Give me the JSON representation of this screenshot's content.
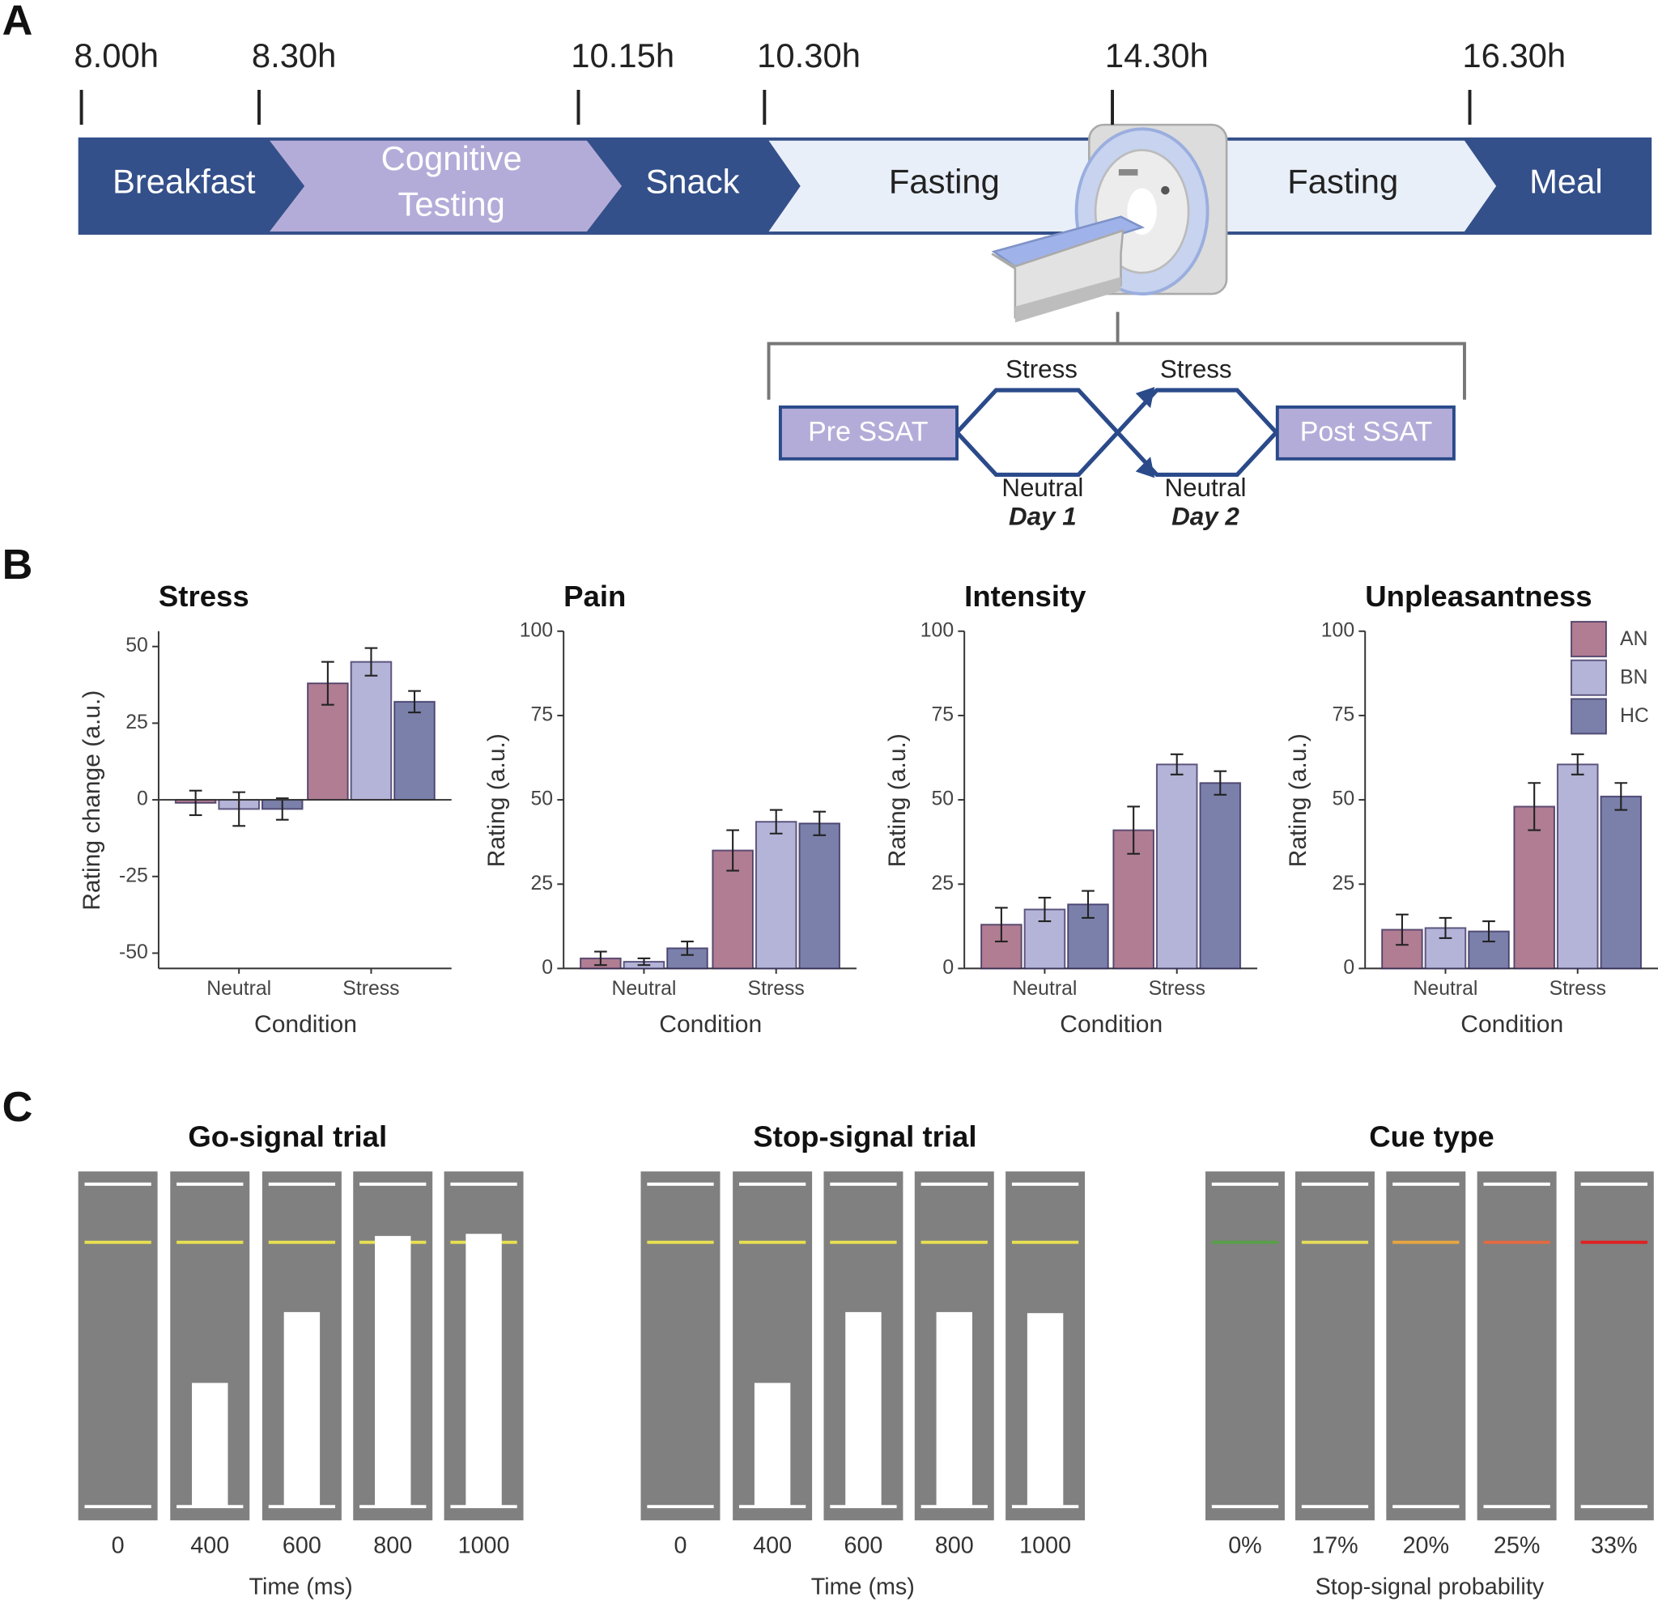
{
  "panel_labels": [
    "A",
    "B",
    "C"
  ],
  "timeline": {
    "times": [
      "8.00h",
      "8.30h",
      "10.15h",
      "10.30h",
      "14.30h",
      "16.30h"
    ],
    "segments": [
      "Breakfast",
      "Cognitive\nTesting",
      "Snack",
      "Fasting",
      "Fasting",
      "Meal"
    ]
  },
  "ssat": {
    "pre": "Pre SSAT",
    "post": "Post SSAT",
    "stress": "Stress",
    "neutral": "Neutral",
    "day1": "Day 1",
    "day2": "Day 2"
  },
  "chart_data": [
    {
      "type": "bar",
      "title": "Stress",
      "y_label": "Rating change (a.u.)",
      "x_label": "Condition",
      "categories": [
        "Neutral",
        "Stress"
      ],
      "ylim": [
        -55,
        55
      ],
      "yticks": [
        -50,
        -25,
        0,
        25,
        50
      ],
      "series": [
        {
          "name": "AN",
          "color": "#b07d92",
          "values": [
            -1,
            38
          ],
          "errors": [
            4,
            7
          ]
        },
        {
          "name": "BN",
          "color": "#b4b4d8",
          "values": [
            -3,
            45
          ],
          "errors": [
            5.5,
            4.5
          ]
        },
        {
          "name": "HC",
          "color": "#7a80aa",
          "values": [
            -3,
            32
          ],
          "errors": [
            3.5,
            3.5
          ]
        }
      ]
    },
    {
      "type": "bar",
      "title": "Pain",
      "y_label": "Rating (a.u.)",
      "x_label": "Condition",
      "categories": [
        "Neutral",
        "Stress"
      ],
      "ylim": [
        0,
        100
      ],
      "yticks": [
        0,
        25,
        50,
        75,
        100
      ],
      "series": [
        {
          "name": "AN",
          "color": "#b07d92",
          "values": [
            3,
            35
          ],
          "errors": [
            2,
            6
          ]
        },
        {
          "name": "BN",
          "color": "#b4b4d8",
          "values": [
            2,
            43.5
          ],
          "errors": [
            1,
            3.5
          ]
        },
        {
          "name": "HC",
          "color": "#7a80aa",
          "values": [
            6,
            43
          ],
          "errors": [
            2,
            3.5
          ]
        }
      ]
    },
    {
      "type": "bar",
      "title": "Intensity",
      "y_label": "Rating (a.u.)",
      "x_label": "Condition",
      "categories": [
        "Neutral",
        "Stress"
      ],
      "ylim": [
        0,
        100
      ],
      "yticks": [
        0,
        25,
        50,
        75,
        100
      ],
      "series": [
        {
          "name": "AN",
          "color": "#b07d92",
          "values": [
            13,
            41
          ],
          "errors": [
            5,
            7
          ]
        },
        {
          "name": "BN",
          "color": "#b4b4d8",
          "values": [
            17.5,
            60.5
          ],
          "errors": [
            3.5,
            3
          ]
        },
        {
          "name": "HC",
          "color": "#7a80aa",
          "values": [
            19,
            55
          ],
          "errors": [
            4,
            3.5
          ]
        }
      ]
    },
    {
      "type": "bar",
      "title": "Unpleasantness",
      "y_label": "Rating (a.u.)",
      "x_label": "Condition",
      "categories": [
        "Neutral",
        "Stress"
      ],
      "ylim": [
        0,
        100
      ],
      "yticks": [
        0,
        25,
        50,
        75,
        100
      ],
      "legend": "top-right",
      "series": [
        {
          "name": "AN",
          "color": "#b07d92",
          "values": [
            11.5,
            48
          ],
          "errors": [
            4.5,
            7
          ]
        },
        {
          "name": "BN",
          "color": "#b4b4d8",
          "values": [
            12,
            60.5
          ],
          "errors": [
            3,
            3
          ]
        },
        {
          "name": "HC",
          "color": "#7a80aa",
          "values": [
            11,
            51
          ],
          "errors": [
            3,
            4
          ]
        }
      ]
    }
  ],
  "stimuli": [
    {
      "title": "Go-signal trial",
      "ticks": [
        0,
        400,
        600,
        800,
        1000
      ],
      "x_label": "Time (ms)"
    },
    {
      "title": "Stop-signal trial",
      "ticks": [
        0,
        400,
        600,
        800,
        1000
      ],
      "x_label": "Time (ms)"
    },
    {
      "title": "Cue type",
      "ticks": [
        "0%",
        "17%",
        "20%",
        "25%",
        "33%"
      ],
      "x_label": "Stop-signal probability"
    }
  ]
}
